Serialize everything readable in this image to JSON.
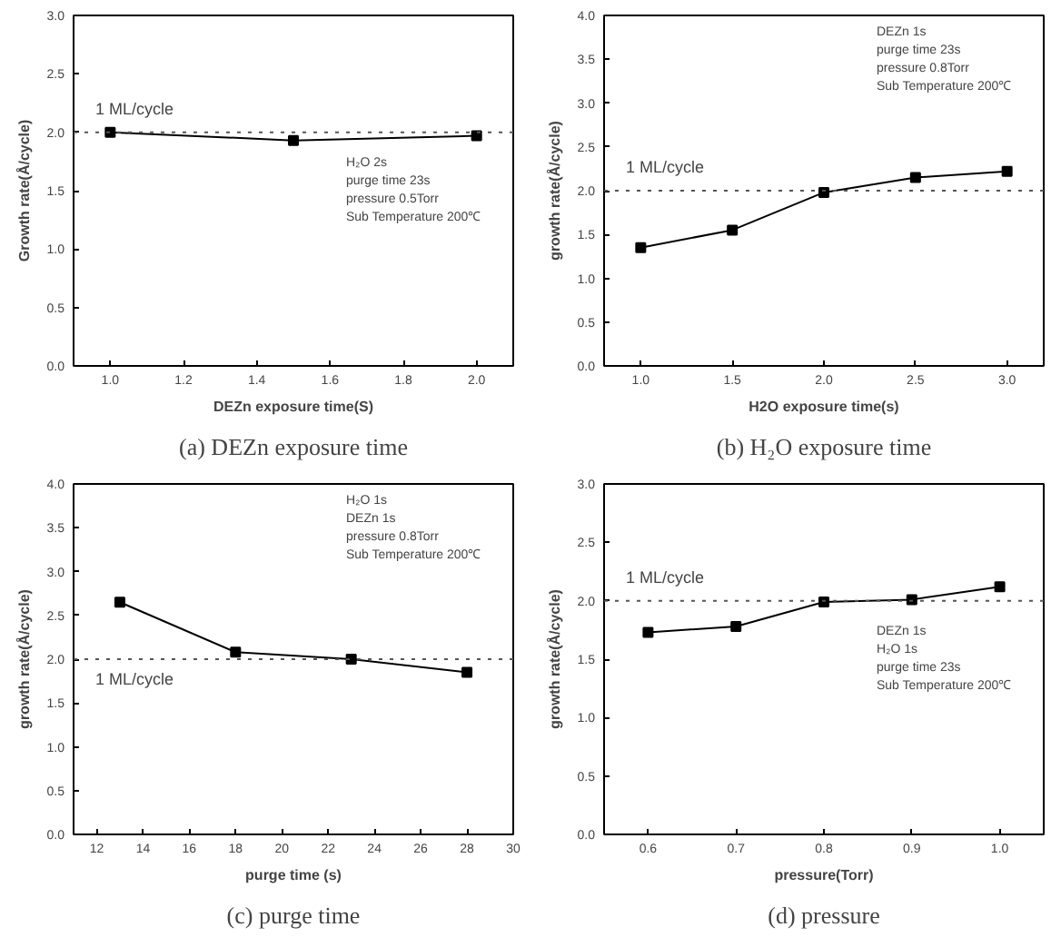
{
  "chart_data": [
    {
      "type": "line",
      "title": "(a) DEZn exposure time",
      "xlabel": "DEZn exposure time(S)",
      "ylabel": "Growth rate(Å/cycle)",
      "x": [
        1.0,
        1.5,
        2.0
      ],
      "series": [
        {
          "color": "#000000",
          "values": [
            2.0,
            1.93,
            1.97
          ]
        }
      ],
      "xlim": [
        0.9,
        2.1
      ],
      "xticks": [
        {
          "value": 1,
          "label": "1.0"
        },
        1.2,
        1.4,
        1.6,
        1.8,
        {
          "value": 2,
          "label": "2.0"
        }
      ],
      "ylim": [
        0,
        3
      ],
      "yticks": [
        {
          "value": 0,
          "label": "0.0"
        },
        0.5,
        {
          "value": 1,
          "label": "1.0"
        },
        1.5,
        {
          "value": 2,
          "label": "2.0"
        },
        2.5,
        {
          "value": 3,
          "label": "3.0"
        }
      ],
      "ref_lines": [
        {
          "axis": "y",
          "value": 2.0,
          "label": "1 ML/cycle",
          "line_style": "dotted"
        }
      ],
      "annotations": [
        "H₂O 2s",
        "purge time 23s",
        "pressure 0.5Torr",
        "Sub Temperature 200℃"
      ],
      "marker": "square",
      "line_style": "solid"
    },
    {
      "type": "line",
      "title": "(b) H₂O exposure time",
      "xlabel": "H2O exposure time(s)",
      "ylabel": "growth rate(Å/cycle)",
      "x": [
        1.0,
        1.5,
        2.0,
        2.5,
        3.0
      ],
      "series": [
        {
          "color": "#000000",
          "values": [
            1.35,
            1.55,
            1.98,
            2.15,
            2.22
          ]
        }
      ],
      "xlim": [
        0.8,
        3.2
      ],
      "xticks": [
        {
          "value": 1,
          "label": "1.0"
        },
        1.5,
        {
          "value": 2,
          "label": "2.0"
        },
        2.5,
        {
          "value": 3,
          "label": "3.0"
        }
      ],
      "ylim": [
        0,
        4
      ],
      "yticks": [
        {
          "value": 0,
          "label": "0.0"
        },
        0.5,
        {
          "value": 1,
          "label": "1.0"
        },
        1.5,
        {
          "value": 2,
          "label": "2.0"
        },
        2.5,
        {
          "value": 3,
          "label": "3.0"
        },
        3.5,
        {
          "value": 4,
          "label": "4.0"
        }
      ],
      "ref_lines": [
        {
          "axis": "y",
          "value": 2.0,
          "label": "1 ML/cycle",
          "line_style": "dotted"
        }
      ],
      "annotations": [
        "DEZn 1s",
        "purge time 23s",
        "pressure 0.8Torr",
        "Sub Temperature 200℃"
      ],
      "marker": "square",
      "line_style": "solid"
    },
    {
      "type": "line",
      "title": "(c) purge time",
      "xlabel": "purge time (s)",
      "ylabel": "growth rate(Å/cycle)",
      "x": [
        13,
        18,
        23,
        28
      ],
      "series": [
        {
          "color": "#000000",
          "values": [
            2.65,
            2.08,
            2.0,
            1.85
          ]
        }
      ],
      "xlim": [
        11,
        30
      ],
      "xticks": [
        12,
        14,
        16,
        18,
        20,
        22,
        24,
        26,
        28,
        30
      ],
      "ylim": [
        0,
        4
      ],
      "yticks": [
        {
          "value": 0,
          "label": "0.0"
        },
        0.5,
        {
          "value": 1,
          "label": "1.0"
        },
        1.5,
        {
          "value": 2,
          "label": "2.0"
        },
        2.5,
        {
          "value": 3,
          "label": "3.0"
        },
        3.5,
        {
          "value": 4,
          "label": "4.0"
        }
      ],
      "ref_lines": [
        {
          "axis": "y",
          "value": 2.0,
          "label": "1 ML/cycle",
          "line_style": "dotted"
        }
      ],
      "annotations": [
        "H₂O 1s",
        "DEZn 1s",
        "pressure 0.8Torr",
        "Sub Temperature 200℃"
      ],
      "marker": "square",
      "line_style": "solid"
    },
    {
      "type": "line",
      "title": "(d) pressure",
      "xlabel": "pressure(Torr)",
      "ylabel": "growth rate(Å/cycle)",
      "x": [
        0.6,
        0.7,
        0.8,
        0.9,
        1.0
      ],
      "series": [
        {
          "color": "#000000",
          "values": [
            1.73,
            1.78,
            1.99,
            2.01,
            2.12
          ]
        }
      ],
      "xlim": [
        0.55,
        1.05
      ],
      "xticks": [
        0.6,
        0.7,
        0.8,
        0.9,
        {
          "value": 1,
          "label": "1.0"
        }
      ],
      "ylim": [
        0,
        3
      ],
      "yticks": [
        {
          "value": 0,
          "label": "0.0"
        },
        0.5,
        {
          "value": 1,
          "label": "1.0"
        },
        1.5,
        {
          "value": 2,
          "label": "2.0"
        },
        2.5,
        {
          "value": 3,
          "label": "3.0"
        }
      ],
      "ref_lines": [
        {
          "axis": "y",
          "value": 2.0,
          "label": "1 ML/cycle",
          "line_style": "dotted"
        }
      ],
      "annotations": [
        "DEZn 1s",
        "H₂O 1s",
        "purge time 23s",
        "Sub Temperature 200℃"
      ],
      "marker": "square",
      "line_style": "solid"
    }
  ]
}
